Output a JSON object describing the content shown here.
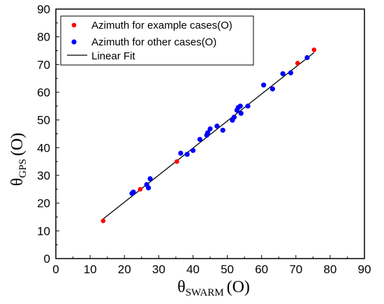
{
  "chart_data": {
    "type": "scatter",
    "xlabel": {
      "symbol": "θ",
      "subscript": "SWARM",
      "unit": "(O)"
    },
    "ylabel": {
      "symbol": "θ",
      "subscript": "GPS",
      "unit": "(O)"
    },
    "xlim": [
      0,
      90
    ],
    "ylim": [
      0,
      90
    ],
    "xticks": [
      0,
      10,
      20,
      30,
      40,
      50,
      60,
      70,
      80,
      90
    ],
    "yticks": [
      0,
      10,
      20,
      30,
      40,
      50,
      60,
      70,
      80,
      90
    ],
    "grid": false,
    "legend_position": "top-left",
    "series": [
      {
        "name": "Azimuth for example cases(O)",
        "kind": "points",
        "color": "#ff0000",
        "points": [
          [
            13.8,
            13.6
          ],
          [
            24.6,
            25.0
          ],
          [
            35.3,
            35.0
          ],
          [
            70.5,
            70.5
          ],
          [
            75.3,
            75.3
          ]
        ]
      },
      {
        "name": "Azimuth for other cases(O)",
        "kind": "points",
        "color": "#0000ff",
        "points": [
          [
            22.2,
            23.5
          ],
          [
            22.6,
            24.0
          ],
          [
            26.5,
            26.7
          ],
          [
            27.0,
            25.5
          ],
          [
            27.5,
            28.8
          ],
          [
            36.4,
            38.0
          ],
          [
            38.3,
            37.6
          ],
          [
            40.0,
            39.0
          ],
          [
            42.0,
            43.0
          ],
          [
            44.0,
            44.5
          ],
          [
            44.3,
            45.4
          ],
          [
            45.0,
            46.8
          ],
          [
            47.0,
            47.8
          ],
          [
            48.7,
            46.3
          ],
          [
            51.5,
            49.9
          ],
          [
            52.0,
            51.0
          ],
          [
            52.8,
            53.5
          ],
          [
            53.2,
            54.5
          ],
          [
            53.8,
            55.0
          ],
          [
            54.0,
            52.4
          ],
          [
            56.0,
            55.0
          ],
          [
            60.6,
            62.6
          ],
          [
            63.2,
            61.2
          ],
          [
            66.2,
            66.7
          ],
          [
            68.5,
            67.0
          ],
          [
            73.3,
            72.5
          ]
        ]
      },
      {
        "name": "Linear Fit",
        "kind": "line",
        "color": "#000000",
        "points": [
          [
            13.8,
            14.3
          ],
          [
            75.3,
            74.3
          ]
        ]
      }
    ]
  }
}
